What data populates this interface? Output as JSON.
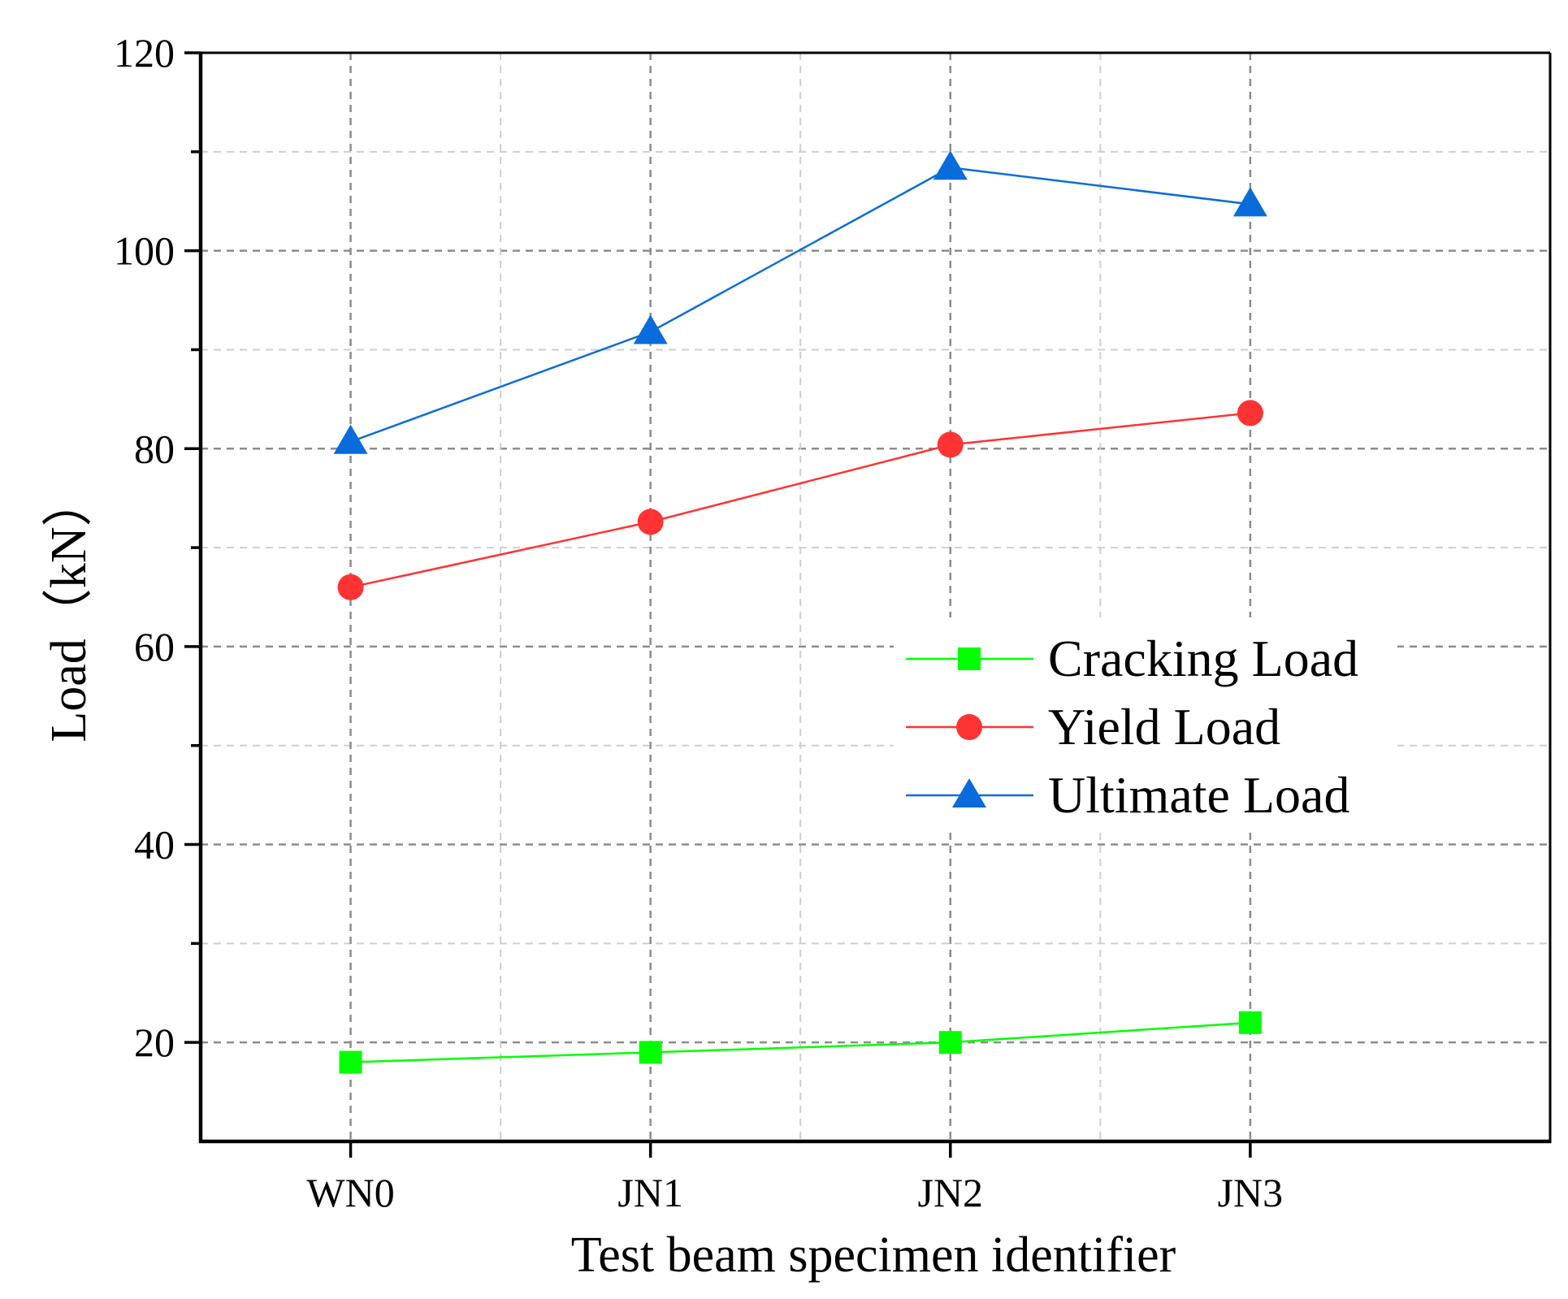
{
  "chart_data": {
    "type": "line",
    "title": "",
    "xlabel": "Test beam specimen identifier",
    "ylabel": "Load（kN）",
    "categories": [
      "WN0",
      "JN1",
      "JN2",
      "JN3"
    ],
    "ylim": [
      10,
      120
    ],
    "yticks": [
      20,
      40,
      60,
      80,
      100,
      120
    ],
    "grid": true,
    "legend_position": "center-right",
    "series": [
      {
        "name": "Cracking Load",
        "color": "#00ff00",
        "marker": "square",
        "values": [
          18,
          19,
          20,
          22
        ]
      },
      {
        "name": "Yield Load",
        "color": "#ff3333",
        "marker": "circle",
        "values": [
          66,
          72.6,
          80.4,
          83.6
        ]
      },
      {
        "name": "Ultimate Load",
        "color": "#0a6cdc",
        "marker": "triangle",
        "values": [
          80.7,
          91.8,
          108.4,
          104.7
        ]
      }
    ]
  }
}
